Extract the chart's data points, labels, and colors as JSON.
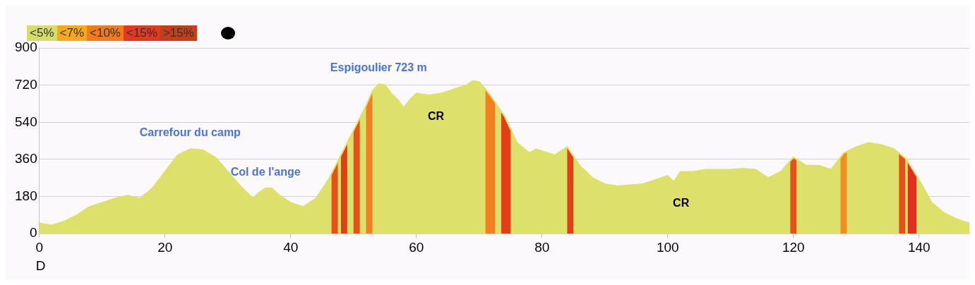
{
  "chart_data": {
    "type": "area",
    "x": [
      0,
      2,
      4,
      6,
      8,
      10,
      12,
      14,
      16,
      18,
      20,
      22,
      24,
      26,
      28,
      30,
      32,
      34,
      35,
      36,
      37,
      38,
      40,
      42,
      44,
      46,
      48,
      50,
      52,
      53,
      54,
      55,
      56,
      57,
      58,
      59,
      60,
      62,
      64,
      66,
      68,
      69,
      70,
      71,
      72,
      74,
      76,
      78,
      79,
      80,
      82,
      84,
      86,
      88,
      90,
      92,
      94,
      96,
      98,
      100,
      101,
      102,
      104,
      106,
      108,
      110,
      112,
      114,
      116,
      118,
      120,
      121,
      122,
      124,
      126,
      128,
      130,
      132,
      134,
      136,
      138,
      140,
      142,
      144,
      146,
      148
    ],
    "series": [
      {
        "color": "#dde06a",
        "values": [
          50,
          40,
          60,
          90,
          130,
          150,
          170,
          185,
          170,
          220,
          300,
          380,
          410,
          405,
          370,
          300,
          230,
          170,
          200,
          220,
          220,
          190,
          150,
          130,
          170,
          260,
          380,
          500,
          620,
          690,
          725,
          720,
          680,
          650,
          610,
          650,
          680,
          670,
          680,
          700,
          720,
          740,
          735,
          700,
          660,
          570,
          440,
          390,
          410,
          400,
          380,
          420,
          330,
          270,
          240,
          230,
          235,
          240,
          260,
          280,
          250,
          300,
          300,
          310,
          310,
          310,
          315,
          310,
          270,
          300,
          370,
          350,
          330,
          330,
          310,
          390,
          420,
          440,
          430,
          410,
          360,
          260,
          150,
          100,
          70,
          50
        ]
      }
    ],
    "xlim": [
      0,
      148
    ],
    "ylim": [
      0,
      900
    ],
    "xticks": [
      0,
      20,
      40,
      60,
      80,
      100,
      120,
      140
    ],
    "yticks": [
      0,
      180,
      360,
      540,
      720,
      900
    ],
    "grid": "y",
    "legend": false,
    "bands": [
      {
        "axis": "x",
        "from": 46.5,
        "to": 47.5,
        "color": "#e8501a"
      },
      {
        "axis": "x",
        "from": 48,
        "to": 49,
        "color": "#e04018"
      },
      {
        "axis": "x",
        "from": 50,
        "to": 51,
        "color": "#e8501a"
      },
      {
        "axis": "x",
        "from": 52,
        "to": 53,
        "color": "#f08020"
      },
      {
        "axis": "x",
        "from": 71,
        "to": 72.5,
        "color": "#f08020"
      },
      {
        "axis": "x",
        "from": 73.5,
        "to": 75,
        "color": "#e04018"
      },
      {
        "axis": "x",
        "from": 84,
        "to": 85,
        "color": "#e04018"
      },
      {
        "axis": "x",
        "from": 119.5,
        "to": 120.5,
        "color": "#e8501a"
      },
      {
        "axis": "x",
        "from": 127.5,
        "to": 128.5,
        "color": "#f09020"
      },
      {
        "axis": "x",
        "from": 136.8,
        "to": 137.8,
        "color": "#e8501a"
      },
      {
        "axis": "x",
        "from": 138.2,
        "to": 139.6,
        "color": "#e03020"
      }
    ],
    "annotations": [
      "<5%",
      "<7%",
      "<10%",
      "<15%",
      ">15%",
      {
        "text": "Carrefour du camp",
        "x": 24,
        "y": 410
      },
      {
        "text": "Col de l'ange",
        "x": 36,
        "y": 220
      },
      {
        "text": "Espigoulier 723 m",
        "x": 54,
        "y": 725
      },
      {
        "text": "CR",
        "x": 62,
        "y": 670
      },
      {
        "text": "CR",
        "x": 101,
        "y": 250
      },
      {
        "text": "D",
        "x": 0,
        "y": 0
      }
    ]
  }
}
